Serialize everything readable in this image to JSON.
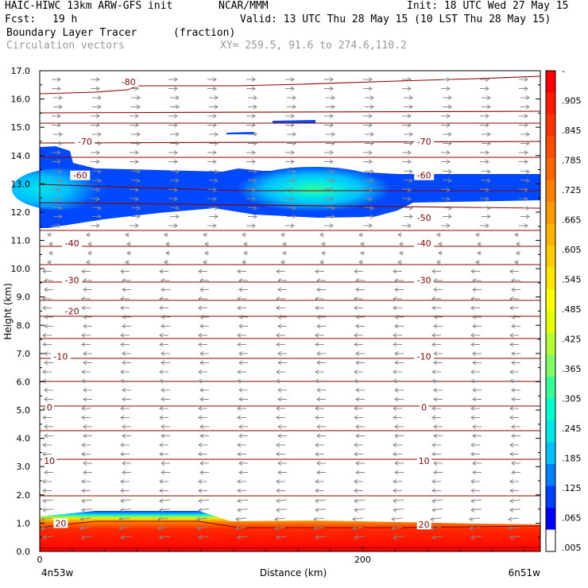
{
  "header": {
    "model_line": "HAIC-HIWC 13km ARW-GFS init",
    "org": "NCAR/MMM",
    "init": "Init: 18 UTC Wed 27 May 15",
    "fcst_label": "Fcst:",
    "fcst_value": "19 h",
    "valid": "Valid: 13 UTC Thu 28 May 15 (10 LST Thu 28 May 15)",
    "field": "Boundary Layer Tracer",
    "units": "(fraction)",
    "vectors": "Circulation vectors",
    "xy": "XY= 259.5, 91.6 to 274.6,110.2"
  },
  "chart_data": {
    "type": "heatmap",
    "ylabel": "Height (km)",
    "xlabel": "Distance (km)",
    "x_left_label": "4n53w",
    "x_right_label": "6n51w",
    "xlim": [
      0,
      310
    ],
    "ylim": [
      0,
      17
    ],
    "x_ticks": [
      0,
      200
    ],
    "y_ticks": [
      "0.0",
      "1.0",
      "2.0",
      "3.0",
      "4.0",
      "5.0",
      "6.0",
      "7.0",
      "8.0",
      "9.0",
      "10.0",
      "11.0",
      "12.0",
      "13.0",
      "14.0",
      "15.0",
      "16.0",
      "17.0"
    ],
    "colorbar_labels": [
      "-",
      ".905",
      ".845",
      ".785",
      ".725",
      ".665",
      ".605",
      ".545",
      ".485",
      ".425",
      ".365",
      ".305",
      ".245",
      ".185",
      ".125",
      ".065",
      ".005"
    ],
    "colorbar_colors": [
      "#ff0000",
      "#ff1a00",
      "#ff3300",
      "#ff4d00",
      "#ff6600",
      "#ff8000",
      "#ff9900",
      "#ffb300",
      "#ffcc00",
      "#ffe600",
      "#ffff00",
      "#e6ff00",
      "#b3ff33",
      "#80ff66",
      "#33ff99",
      "#00ffcc",
      "#00e6e6",
      "#00bfff",
      "#0080ff",
      "#0040ff",
      "#0000ff",
      "#ffffff"
    ],
    "contour_labels": [
      {
        "text": "-80",
        "x": 55,
        "y": 16.6
      },
      {
        "text": "-70",
        "x": 28,
        "y": 14.5
      },
      {
        "text": "-70",
        "x": 238,
        "y": 14.5
      },
      {
        "text": "-60",
        "x": 25,
        "y": 13.3
      },
      {
        "text": "-60",
        "x": 238,
        "y": 13.3
      },
      {
        "text": "-50",
        "x": 238,
        "y": 11.8
      },
      {
        "text": "-40",
        "x": 20,
        "y": 10.9
      },
      {
        "text": "-40",
        "x": 238,
        "y": 10.9
      },
      {
        "text": "-30",
        "x": 20,
        "y": 9.6
      },
      {
        "text": "-30",
        "x": 238,
        "y": 9.6
      },
      {
        "text": "-20",
        "x": 20,
        "y": 8.5
      },
      {
        "text": "-10",
        "x": 13,
        "y": 6.9
      },
      {
        "text": "-10",
        "x": 238,
        "y": 6.9
      },
      {
        "text": "0",
        "x": 6,
        "y": 5.1
      },
      {
        "text": "0",
        "x": 238,
        "y": 5.1
      },
      {
        "text": "10",
        "x": 6,
        "y": 3.2
      },
      {
        "text": "10",
        "x": 238,
        "y": 3.2
      },
      {
        "text": "20",
        "x": 13,
        "y": 1.0
      },
      {
        "text": "20",
        "x": 238,
        "y": 0.95
      }
    ]
  }
}
